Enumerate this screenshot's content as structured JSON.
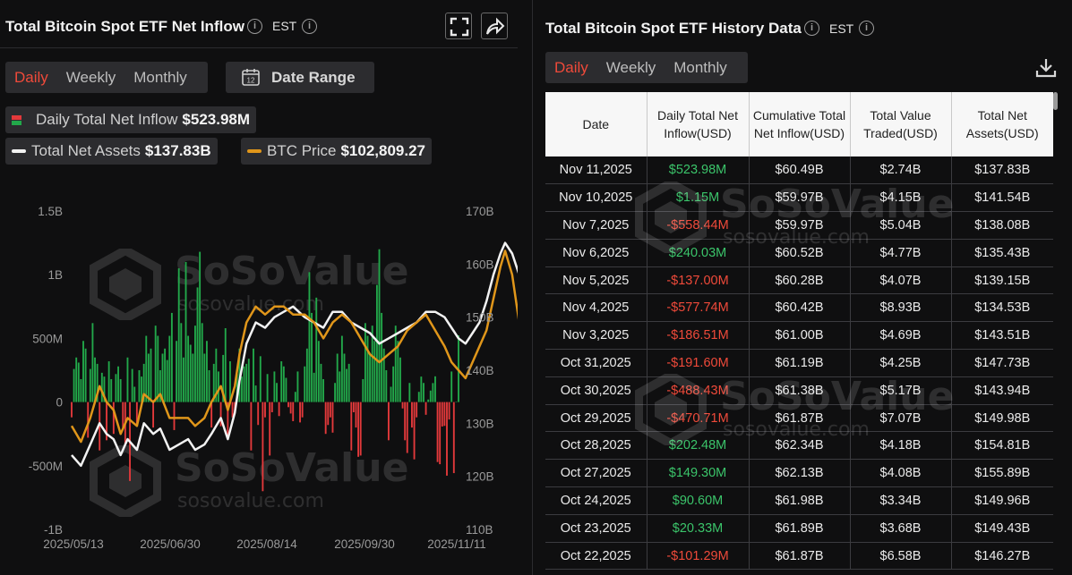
{
  "left_panel": {
    "title": "Total Bitcoin Spot ETF Net Inflow",
    "timezone": "EST",
    "info_glyph": "i",
    "tabs": [
      {
        "label": "Daily",
        "active": true
      },
      {
        "label": "Weekly",
        "active": false
      },
      {
        "label": "Monthly",
        "active": false
      }
    ],
    "date_range_label": "Date Range",
    "calendar_day": "12",
    "legend": {
      "daily_inflow_label": "Daily Total Net Inflow",
      "daily_inflow_value": "$523.98M",
      "net_assets_label": "Total Net Assets",
      "net_assets_value": "$137.83B",
      "btc_price_label": "BTC Price",
      "btc_price_value": "$102,809.27"
    },
    "icons": [
      "fullscreen-icon",
      "share-icon",
      "info-icon",
      "calendar-icon"
    ]
  },
  "right_panel": {
    "title": "Total Bitcoin Spot ETF History Data",
    "timezone": "EST",
    "info_glyph": "i",
    "tabs": [
      {
        "label": "Daily",
        "active": true
      },
      {
        "label": "Weekly",
        "active": false
      },
      {
        "label": "Monthly",
        "active": false
      }
    ],
    "columns": [
      "Date",
      "Daily Total Net Inflow(USD)",
      "Cumulative Total Net Inflow(USD)",
      "Total Value Traded(USD)",
      "Total Net Assets(USD)"
    ],
    "rows": [
      [
        "Nov 11,2025",
        "$523.98M",
        "$60.49B",
        "$2.74B",
        "$137.83B"
      ],
      [
        "Nov 10,2025",
        "$1.15M",
        "$59.97B",
        "$4.15B",
        "$141.54B"
      ],
      [
        "Nov 7,2025",
        "-$558.44M",
        "$59.97B",
        "$5.04B",
        "$138.08B"
      ],
      [
        "Nov 6,2025",
        "$240.03M",
        "$60.52B",
        "$4.77B",
        "$135.43B"
      ],
      [
        "Nov 5,2025",
        "-$137.00M",
        "$60.28B",
        "$4.07B",
        "$139.15B"
      ],
      [
        "Nov 4,2025",
        "-$577.74M",
        "$60.42B",
        "$8.93B",
        "$134.53B"
      ],
      [
        "Nov 3,2025",
        "-$186.51M",
        "$61.00B",
        "$4.69B",
        "$143.51B"
      ],
      [
        "Oct 31,2025",
        "-$191.60M",
        "$61.19B",
        "$4.25B",
        "$147.73B"
      ],
      [
        "Oct 30,2025",
        "-$488.43M",
        "$61.38B",
        "$5.17B",
        "$143.94B"
      ],
      [
        "Oct 29,2025",
        "-$470.71M",
        "$61.87B",
        "$7.07B",
        "$149.98B"
      ],
      [
        "Oct 28,2025",
        "$202.48M",
        "$62.34B",
        "$4.18B",
        "$154.81B"
      ],
      [
        "Oct 27,2025",
        "$149.30M",
        "$62.13B",
        "$4.08B",
        "$155.89B"
      ],
      [
        "Oct 24,2025",
        "$90.60M",
        "$61.98B",
        "$3.34B",
        "$149.96B"
      ],
      [
        "Oct 23,2025",
        "$20.33M",
        "$61.89B",
        "$3.68B",
        "$149.43B"
      ],
      [
        "Oct 22,2025",
        "-$101.29M",
        "$61.87B",
        "$6.58B",
        "$146.27B"
      ]
    ],
    "icons": [
      "download-icon",
      "info-icon"
    ]
  },
  "watermarks": {
    "brand": "SoSoValue",
    "domain": "sosovalue.com"
  },
  "chart_data": {
    "type": "bar",
    "x_tick_labels": [
      "2025/05/13",
      "2025/06/30",
      "2025/08/14",
      "2025/09/30",
      "2025/11/11"
    ],
    "x_range": [
      "2025/05/13",
      "2025/11/11"
    ],
    "y_left": {
      "tick_labels": [
        "1.5B",
        "1B",
        "500M",
        "0",
        "-500M",
        "-1B"
      ],
      "range_usd_millions": [
        -1000,
        1500
      ]
    },
    "y_right": {
      "tick_labels": [
        "170B",
        "160B",
        "150B",
        "140B",
        "130B",
        "120B",
        "110B"
      ],
      "range_usd_billions": [
        110,
        170
      ]
    },
    "grid": false,
    "colors": {
      "inflow": "#22a84a",
      "outflow": "#e3393b",
      "net_assets": "#f2f2f2",
      "btc_price": "#e0961a"
    },
    "series": [
      {
        "name": "Daily Total Net Inflow",
        "kind": "bar",
        "unit": "USD millions",
        "values": [
          -120,
          260,
          350,
          310,
          180,
          480,
          420,
          -280,
          260,
          620,
          350,
          300,
          -380,
          230,
          200,
          -300,
          320,
          180,
          -250,
          220,
          280,
          180,
          -200,
          -330,
          350,
          -620,
          260,
          120,
          -180,
          250,
          200,
          300,
          520,
          380,
          420,
          -200,
          600,
          520,
          250,
          380,
          420,
          330,
          520,
          700,
          -220,
          480,
          1050,
          620,
          350,
          1100,
          520,
          450,
          380,
          600,
          900,
          1180,
          620,
          380,
          480,
          250,
          -200,
          300,
          420,
          240,
          -190,
          370,
          580,
          -260,
          320,
          -120,
          -80,
          220,
          420,
          200,
          280,
          300,
          340,
          -380,
          420,
          130,
          -180,
          360,
          -700,
          -120,
          220,
          -420,
          -80,
          240,
          150,
          -110,
          320,
          280,
          190,
          -40,
          -90,
          -150,
          80,
          240,
          -160,
          -120,
          280,
          420,
          1020,
          700,
          230,
          820,
          480,
          300,
          180,
          -250,
          -180,
          -120,
          -240,
          150,
          380,
          240,
          520,
          380,
          260,
          300,
          -380,
          -80,
          -200,
          -430,
          -420,
          180,
          620,
          520,
          380,
          600,
          480,
          920,
          1200,
          700,
          420,
          250,
          -300,
          120,
          280,
          600,
          480,
          350,
          -50,
          -300,
          -400,
          150,
          -200,
          -450,
          -120,
          80,
          200,
          150,
          -100,
          20,
          90,
          149,
          202,
          -471,
          -488,
          -192,
          -187,
          -578,
          -137,
          240,
          -558,
          1,
          524
        ]
      },
      {
        "name": "Total Net Assets",
        "kind": "line",
        "unit": "USD billions",
        "points": [
          [
            0,
            124
          ],
          [
            4,
            122
          ],
          [
            8,
            126
          ],
          [
            12,
            130
          ],
          [
            15,
            128
          ],
          [
            18,
            127
          ],
          [
            21,
            124
          ],
          [
            24,
            127
          ],
          [
            28,
            125
          ],
          [
            31,
            130
          ],
          [
            35,
            128
          ],
          [
            38,
            129
          ],
          [
            42,
            125
          ],
          [
            46,
            126
          ],
          [
            50,
            127
          ],
          [
            53,
            125
          ],
          [
            57,
            126
          ],
          [
            60,
            128
          ],
          [
            64,
            131
          ],
          [
            67,
            127
          ],
          [
            70,
            132
          ],
          [
            72,
            138
          ],
          [
            75,
            145
          ],
          [
            79,
            149
          ],
          [
            83,
            148
          ],
          [
            87,
            150
          ],
          [
            91,
            151
          ],
          [
            95,
            152
          ],
          [
            100,
            150
          ],
          [
            104,
            149
          ],
          [
            108,
            148
          ],
          [
            112,
            151
          ],
          [
            116,
            151
          ],
          [
            120,
            149
          ],
          [
            124,
            148
          ],
          [
            128,
            147
          ],
          [
            132,
            145
          ],
          [
            136,
            146
          ],
          [
            140,
            147
          ],
          [
            144,
            148
          ],
          [
            148,
            149
          ],
          [
            152,
            151
          ],
          [
            156,
            151
          ],
          [
            160,
            150
          ],
          [
            163,
            148
          ],
          [
            166,
            146
          ],
          [
            169,
            145
          ],
          [
            172,
            147
          ],
          [
            175,
            149
          ],
          [
            178,
            153
          ],
          [
            181,
            158
          ],
          [
            184,
            162
          ],
          [
            186,
            164
          ],
          [
            189,
            162
          ],
          [
            192,
            158
          ],
          [
            195,
            152
          ],
          [
            198,
            147
          ],
          [
            201,
            143
          ],
          [
            204,
            146
          ],
          [
            207,
            148
          ],
          [
            210,
            151
          ],
          [
            213,
            150
          ],
          [
            216,
            145
          ],
          [
            219,
            141
          ],
          [
            222,
            136
          ],
          [
            225,
            140
          ],
          [
            228,
            141
          ],
          [
            230,
            137.83
          ]
        ]
      },
      {
        "name": "BTC Price",
        "kind": "line",
        "unit": "USD thousands",
        "points": [
          [
            0,
            103
          ],
          [
            4,
            101
          ],
          [
            8,
            104
          ],
          [
            12,
            108
          ],
          [
            15,
            106
          ],
          [
            18,
            105
          ],
          [
            21,
            102
          ],
          [
            24,
            104
          ],
          [
            28,
            103
          ],
          [
            31,
            107
          ],
          [
            35,
            106
          ],
          [
            38,
            107
          ],
          [
            42,
            104
          ],
          [
            46,
            104
          ],
          [
            50,
            104
          ],
          [
            53,
            103
          ],
          [
            57,
            104
          ],
          [
            60,
            106
          ],
          [
            64,
            108
          ],
          [
            67,
            105
          ],
          [
            70,
            108
          ],
          [
            72,
            112
          ],
          [
            75,
            116
          ],
          [
            79,
            118
          ],
          [
            83,
            117
          ],
          [
            87,
            118
          ],
          [
            91,
            118
          ],
          [
            95,
            117
          ],
          [
            100,
            117
          ],
          [
            104,
            116
          ],
          [
            108,
            114
          ],
          [
            112,
            116
          ],
          [
            116,
            117
          ],
          [
            120,
            116
          ],
          [
            124,
            114
          ],
          [
            128,
            112
          ],
          [
            132,
            111
          ],
          [
            136,
            112
          ],
          [
            140,
            113
          ],
          [
            144,
            115
          ],
          [
            148,
            116
          ],
          [
            152,
            117
          ],
          [
            156,
            115
          ],
          [
            160,
            113
          ],
          [
            163,
            111
          ],
          [
            166,
            110
          ],
          [
            169,
            109
          ],
          [
            172,
            111
          ],
          [
            175,
            113
          ],
          [
            178,
            115
          ],
          [
            181,
            119
          ],
          [
            184,
            123
          ],
          [
            186,
            125
          ],
          [
            189,
            122
          ],
          [
            192,
            116
          ],
          [
            195,
            112
          ],
          [
            198,
            108
          ],
          [
            201,
            107
          ],
          [
            204,
            110
          ],
          [
            207,
            112
          ],
          [
            210,
            113
          ],
          [
            213,
            111
          ],
          [
            216,
            108
          ],
          [
            219,
            104
          ],
          [
            222,
            101
          ],
          [
            225,
            104
          ],
          [
            228,
            106
          ],
          [
            230,
            102.8
          ]
        ]
      }
    ]
  }
}
